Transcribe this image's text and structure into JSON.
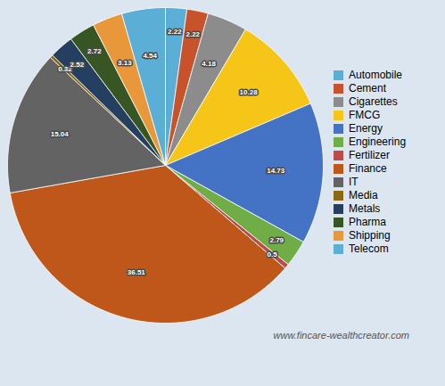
{
  "chart_data": {
    "type": "pie",
    "categories": [
      "Automobile",
      "Cement",
      "Cigarettes",
      "FMCG",
      "Energy",
      "Engineering",
      "Fertilizer",
      "Finance",
      "IT",
      "Media",
      "Metals",
      "Pharma",
      "Shipping",
      "Telecom"
    ],
    "values": [
      2.22,
      2.22,
      4.18,
      10.28,
      14.73,
      2.79,
      0.5,
      36.51,
      15.04,
      0.32,
      2.52,
      2.72,
      3.13,
      4.54
    ],
    "colors": [
      "#5bafd6",
      "#c8522a",
      "#8c8c8c",
      "#f5c518",
      "#4472c4",
      "#70ad47",
      "#be4b48",
      "#c0571a",
      "#636363",
      "#8b6914",
      "#243f60",
      "#375623",
      "#e8973a",
      "#5bafd6"
    ],
    "data_labels": true,
    "legend": "right",
    "annotations": [
      "www.fincare-wealthcreator.com"
    ]
  }
}
